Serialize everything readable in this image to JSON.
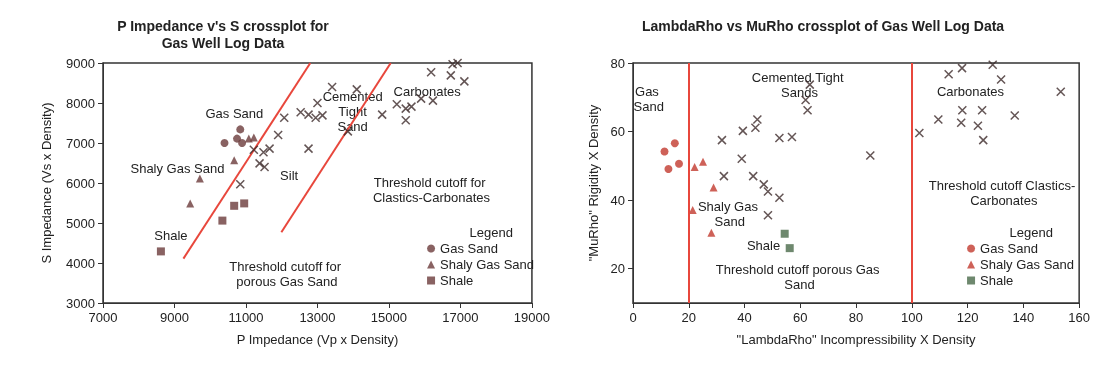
{
  "chart_data": [
    {
      "type": "scatter",
      "title": "P Impedance v's S crossplot for\nGas Well Log Data",
      "xlabel": "P Impedance (Vp x Density)",
      "ylabel": "S Impedance (Vs x Density)",
      "legend_title": "Legend",
      "legend": "bottom right",
      "grid": false,
      "xlim": [
        7000,
        19000
      ],
      "xticks": [
        7000,
        9000,
        11000,
        13000,
        15000,
        17000,
        19000
      ],
      "ylim": [
        3000,
        9000
      ],
      "yticks": [
        3000,
        4000,
        5000,
        6000,
        7000,
        8000,
        9000
      ],
      "series": [
        {
          "name": "Gas Sand",
          "color": "#6b3b3b",
          "marker": "circle",
          "x": [
            10840,
            10400,
            10750,
            10890
          ],
          "values": [
            7340,
            7000,
            7110,
            7000
          ]
        },
        {
          "name": "Shaly Gas Sand",
          "color": "#6b3b3b",
          "marker": "triangle",
          "x": [
            9440,
            9710,
            10670,
            11080,
            11220
          ],
          "values": [
            5490,
            6110,
            6570,
            7110,
            7140
          ]
        },
        {
          "name": "Shale",
          "color": "#6b3b3b",
          "marker": "square",
          "x": [
            8620,
            10340,
            10670,
            10950
          ],
          "values": [
            4290,
            5060,
            5430,
            5490
          ]
        },
        {
          "color": "#3d2a2a",
          "marker": "cross",
          "x": [
            10840,
            11220,
            11380,
            11490,
            11520,
            11660,
            11900,
            12070,
            12530,
            12750,
            12950,
            13000,
            12750,
            13140,
            13410,
            14100,
            13850,
            14810,
            15220,
            15470,
            15470,
            15630,
            15900,
            16230,
            16180,
            16730,
            16780,
            16920,
            17110
          ],
          "values": [
            5970,
            6830,
            6490,
            6770,
            6400,
            6860,
            7200,
            7630,
            7770,
            7710,
            7630,
            8000,
            6860,
            7690,
            8400,
            8340,
            7290,
            7710,
            7970,
            7570,
            7860,
            7910,
            8110,
            8060,
            8770,
            8690,
            8970,
            9000,
            8540
          ]
        },
        {
          "type": "line",
          "color": "#e8473c",
          "marker": "none",
          "x": [
            9250,
            12800
          ],
          "values": [
            4110,
            9000
          ]
        },
        {
          "type": "line",
          "color": "#e8473c",
          "marker": "none",
          "x": [
            11990,
            15050
          ],
          "values": [
            4770,
            9000
          ]
        }
      ],
      "annotations": [
        "Gas Sand",
        "Shaly Gas Sand",
        "Shale",
        "Silt",
        "Cemented Tight Sand",
        "Carbonates",
        "Threshold cutoff for Clastics-Carbonates",
        "Threshold cutoff for porous Gas Sand"
      ]
    },
    {
      "type": "scatter",
      "title": "LambdaRho vs MuRho crossplot of Gas Well Log Data",
      "xlabel": "\"LambdaRho\" Incompressibility X Density",
      "ylabel": "\"MuRho\" Rigidity X Density",
      "legend_title": "Legend",
      "legend": "bottom right",
      "grid": false,
      "xlim": [
        0,
        160
      ],
      "xticks": [
        0,
        20,
        40,
        60,
        80,
        100,
        120,
        140,
        160
      ],
      "ylim": [
        10,
        80
      ],
      "yticks": [
        20,
        40,
        60,
        80
      ],
      "series": [
        {
          "name": "Gas Sand",
          "color": "#c23a2e",
          "marker": "circle",
          "x": [
            11.3,
            15,
            12.7,
            16.5
          ],
          "values": [
            54.2,
            56.6,
            49.1,
            50.6
          ]
        },
        {
          "name": "Shaly Gas Sand",
          "color": "#c23a2e",
          "marker": "triangle",
          "x": [
            22.1,
            25.1,
            28.9,
            21.4,
            28.1
          ],
          "values": [
            49.7,
            51.2,
            43.7,
            37.1,
            30.5
          ]
        },
        {
          "name": "Shale",
          "color": "#4a6a4a",
          "marker": "square",
          "x": [
            56.2,
            54.4
          ],
          "values": [
            26,
            30.2
          ]
        },
        {
          "color": "#3d2a2a",
          "marker": "cross",
          "x": [
            63.4,
            61.9,
            62.6,
            44.6,
            43.9,
            39.4,
            31.9,
            52.5,
            57,
            39,
            85.1,
            32.6,
            43.1,
            46.9,
            48.4,
            52.5,
            48.4,
            113.2,
            132,
            153.4,
            118.1,
            125.2,
            136.9,
            109.5,
            117.7,
            123.7,
            102.7,
            125.6,
            118,
            129
          ],
          "values": [
            73.7,
            69.2,
            66.2,
            63.5,
            61.1,
            60.2,
            57.5,
            58.1,
            58.4,
            52.1,
            53,
            47,
            47,
            44.6,
            42.5,
            40.7,
            35.6,
            76.7,
            75.2,
            71.6,
            66.2,
            66.2,
            64.7,
            63.5,
            62.6,
            61.7,
            59.6,
            57.5,
            78.5,
            79.5
          ]
        }
      ],
      "ref_lines": [
        {
          "axis": "x",
          "value": 20,
          "color": "#e8473c"
        },
        {
          "axis": "x",
          "value": 100,
          "color": "#e8473c"
        }
      ],
      "annotations": [
        "Gas Sand",
        "Cemented Tight Sands",
        "Carbonates",
        "Shaly Gas Sand",
        "Shale",
        "Threshold cutoff porous Gas Sand",
        "Threshold cutoff Clastics- Carbonates"
      ]
    }
  ]
}
